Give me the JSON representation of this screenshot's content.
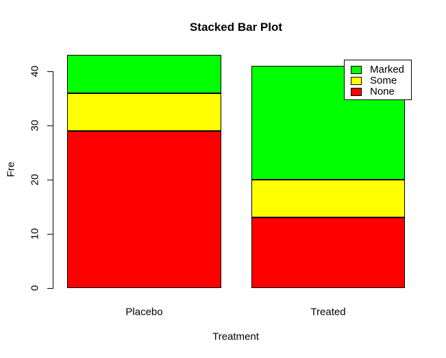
{
  "chart_data": {
    "type": "bar",
    "stacked": true,
    "title": "Stacked Bar Plot",
    "xlabel": "Treatment",
    "ylabel": "Fre",
    "categories": [
      "Placebo",
      "Treated"
    ],
    "series": [
      {
        "name": "None",
        "color": "#ff0000",
        "values": [
          29,
          13
        ]
      },
      {
        "name": "Some",
        "color": "#ffff00",
        "values": [
          7,
          7
        ]
      },
      {
        "name": "Marked",
        "color": "#00ff00",
        "values": [
          7,
          21
        ]
      }
    ],
    "totals": [
      43,
      41
    ],
    "yticks": [
      "0",
      "10",
      "20",
      "30",
      "40"
    ],
    "ylim": [
      0,
      40
    ],
    "bar_border_color": "#000000",
    "background_color": "#ffffff",
    "legend": {
      "position": "topright",
      "entries": [
        {
          "label": "Marked",
          "color": "#00ff00"
        },
        {
          "label": "Some",
          "color": "#ffff00"
        },
        {
          "label": "None",
          "color": "#ff0000"
        }
      ]
    }
  }
}
